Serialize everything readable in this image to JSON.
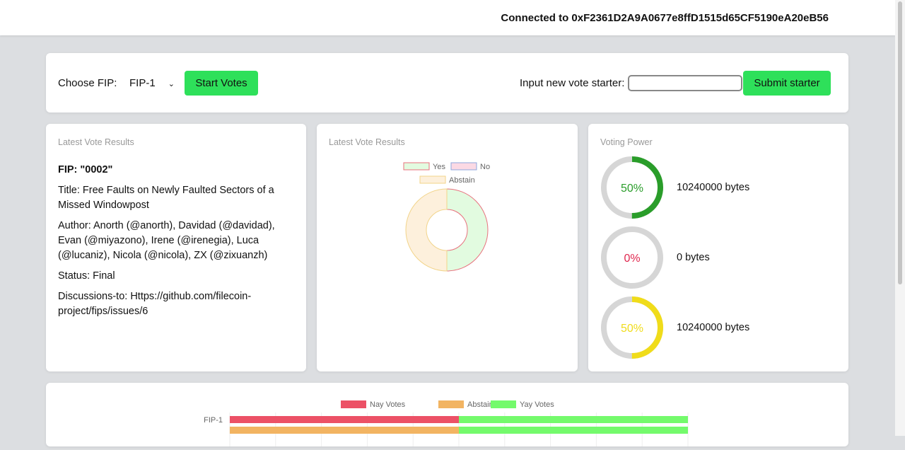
{
  "header": {
    "connected": "Connected to 0xF2361D2A9A0677e8ffD1515d65CF5190eA20eB56"
  },
  "controls": {
    "choose_label": "Choose FIP:",
    "selected_fip": "FIP-1",
    "start_votes": "Start Votes",
    "starter_label": "Input new vote starter:",
    "starter_value": "",
    "submit_starter": "Submit starter"
  },
  "info": {
    "title": "Latest Vote Results",
    "fip": "FIP: \"0002\"",
    "fip_title": "Title: Free Faults on Newly Faulted Sectors of a Missed Windowpost",
    "author": "Author: Anorth (@anorth), Davidad (@davidad), Evan (@miyazono), Irene (@irenegia), Luca (@lucaniz), Nicola (@nicola), ZX (@zixuanzh)",
    "status": "Status: Final",
    "discussions": "Discussions-to: Https://github.com/filecoin-project/fips/issues/6"
  },
  "power": {
    "title": "Voting Power",
    "items": [
      {
        "percent": "50%",
        "value": 50,
        "bytes": "10240000 bytes",
        "color": "#2a9d2a"
      },
      {
        "percent": "0%",
        "value": 0,
        "bytes": "0 bytes",
        "color": "#e0284f"
      },
      {
        "percent": "50%",
        "value": 50,
        "bytes": "10240000 bytes",
        "color": "#f0dc1a"
      }
    ]
  },
  "chart_data": [
    {
      "type": "pie",
      "title": "Latest Vote Results",
      "donut": true,
      "labels": [
        "Yes",
        "No",
        "Abstain"
      ],
      "values": [
        1,
        0,
        1
      ],
      "colors": [
        "#e2fbe0",
        "#fbd9e4",
        "#fdf0dc"
      ],
      "borders": [
        "#e8727e",
        "#8ea6dd",
        "#f2d48a"
      ],
      "legend": "top"
    },
    {
      "type": "bar",
      "orientation": "horizontal",
      "stacked": true,
      "categories": [
        "FIP-1"
      ],
      "series": [
        {
          "name": "Nay Votes",
          "values": [
            1
          ],
          "color": "#ec5166"
        },
        {
          "name": "Abstain Votes",
          "values": [
            1
          ],
          "color": "#f2b462"
        },
        {
          "name": "Yay Votes",
          "values": [
            1
          ],
          "color": "#74fa6c"
        }
      ],
      "legend": "top"
    }
  ]
}
